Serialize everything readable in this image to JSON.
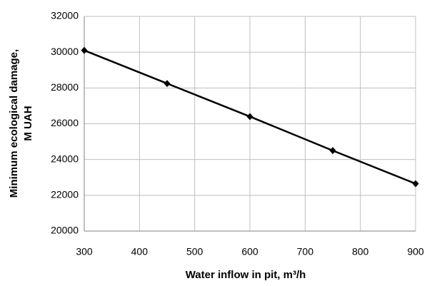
{
  "chart_data": {
    "type": "line",
    "x_label": "Water inflow in pit, m³/h",
    "y_label": [
      "Minimum ecological damage,",
      "M UAH"
    ],
    "x": [
      300,
      450,
      600,
      750,
      900
    ],
    "series": [
      {
        "name": "Minimum ecological damage",
        "color": "#000000",
        "values": [
          30100,
          28250,
          26400,
          24500,
          22650
        ]
      }
    ],
    "xlim": [
      300,
      900
    ],
    "xticks": [
      300,
      400,
      500,
      600,
      700,
      800,
      900
    ],
    "ylim": [
      20000,
      32000
    ],
    "yticks": [
      20000,
      22000,
      24000,
      26000,
      28000,
      30000,
      32000
    ],
    "grid": true
  }
}
